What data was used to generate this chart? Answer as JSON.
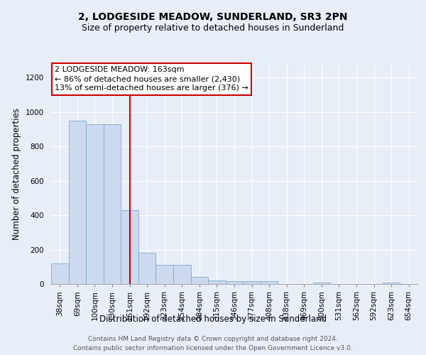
{
  "title": "2, LODGESIDE MEADOW, SUNDERLAND, SR3 2PN",
  "subtitle": "Size of property relative to detached houses in Sunderland",
  "xlabel": "Distribution of detached houses by size in Sunderland",
  "ylabel": "Number of detached properties",
  "categories": [
    "38sqm",
    "69sqm",
    "100sqm",
    "130sqm",
    "161sqm",
    "192sqm",
    "223sqm",
    "254sqm",
    "284sqm",
    "315sqm",
    "346sqm",
    "377sqm",
    "408sqm",
    "438sqm",
    "469sqm",
    "500sqm",
    "531sqm",
    "562sqm",
    "592sqm",
    "623sqm",
    "654sqm"
  ],
  "values": [
    120,
    950,
    930,
    930,
    430,
    180,
    110,
    110,
    40,
    20,
    15,
    15,
    15,
    0,
    0,
    8,
    0,
    0,
    0,
    8,
    0
  ],
  "bar_color": "#ccd9ee",
  "bar_edge_color": "#7aaad4",
  "property_line_index": 4,
  "property_line_color": "#cc0000",
  "annotation_text": "2 LODGESIDE MEADOW: 163sqm\n← 86% of detached houses are smaller (2,430)\n13% of semi-detached houses are larger (376) →",
  "annotation_box_color": "#cc0000",
  "ylim": [
    0,
    1280
  ],
  "yticks": [
    0,
    200,
    400,
    600,
    800,
    1000,
    1200
  ],
  "footer_line1": "Contains HM Land Registry data © Crown copyright and database right 2024.",
  "footer_line2": "Contains public sector information licensed under the Open Government Licence v3.0.",
  "background_color": "#e8eef8",
  "plot_bg_color": "#e8eef8",
  "grid_color": "#ffffff",
  "title_fontsize": 10,
  "subtitle_fontsize": 9,
  "axis_label_fontsize": 8.5,
  "tick_fontsize": 7.5,
  "annotation_fontsize": 8,
  "footer_fontsize": 6.5
}
